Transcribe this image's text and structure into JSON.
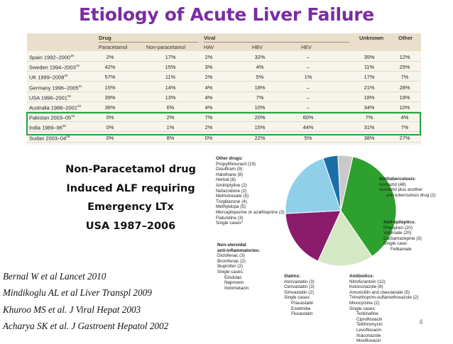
{
  "slide": {
    "title": "Etiology of Acute Liver Failure",
    "page_number": "4"
  },
  "table": {
    "groups": [
      "Drug",
      "Viral",
      "Unknown",
      "Other"
    ],
    "subheaders": [
      "Paracetamol",
      "Non-paracetamol",
      "HAV",
      "HBV",
      "HEV"
    ],
    "rows": [
      {
        "region": "Spain 1992–2000",
        "ref": "18",
        "values": [
          "2%",
          "17%",
          "2%",
          "32%",
          "–",
          "35%",
          "12%"
        ]
      },
      {
        "region": "Sweden 1994–2003",
        "ref": "19",
        "values": [
          "42%",
          "15%",
          "3%",
          "4%",
          "–",
          "11%",
          "25%"
        ]
      },
      {
        "region": "UK 1999–2008",
        "ref": "20",
        "values": [
          "57%",
          "11%",
          "2%",
          "5%",
          "1%",
          "17%",
          "7%"
        ]
      },
      {
        "region": "Germany 1996–2005",
        "ref": "21",
        "values": [
          "15%",
          "14%",
          "4%",
          "18%",
          "–",
          "21%",
          "28%"
        ]
      },
      {
        "region": "USA 1998–2001",
        "ref": "22",
        "values": [
          "39%",
          "13%",
          "4%",
          "7%",
          "–",
          "18%",
          "19%"
        ]
      },
      {
        "region": "Australia 1988–2001",
        "ref": "23",
        "values": [
          "36%",
          "6%",
          "4%",
          "10%",
          "–",
          "34%",
          "10%"
        ]
      },
      {
        "region": "Pakistan 2003–05",
        "ref": "24",
        "values": [
          "0%",
          "2%",
          "7%",
          "20%",
          "60%",
          "7%",
          "4%"
        ]
      },
      {
        "region": "India 1989–96",
        "ref": "25",
        "values": [
          "0%",
          "1%",
          "2%",
          "15%",
          "44%",
          "31%",
          "7%"
        ]
      },
      {
        "region": "Sudan 2003–04",
        "ref": "26",
        "values": [
          "0%",
          "8%",
          "0%",
          "22%",
          "5%",
          "38%",
          "27%"
        ]
      }
    ]
  },
  "ltx_text": [
    "Non-Paracetamol drug",
    "Induced  ALF  requiring",
    "Emergency  LTx",
    "USA  1987–2006"
  ],
  "references": [
    "Bernal W et al Lancet 2010",
    "Mindikoglu AL et al Liver Transpl 2009",
    "Khuroo MS et al. J Viral Hepat 2003",
    "Acharya SK et al. J Gastroent Hepatol 2002"
  ],
  "chart_data": {
    "type": "pie",
    "title": "",
    "slices": [
      {
        "name": "Other drugs",
        "value": 34,
        "color": "#2ea02e"
      },
      {
        "name": "Antituberculosis",
        "value": 15,
        "color": "#d3e9c4"
      },
      {
        "name": "Anti-epileptics",
        "value": 16,
        "color": "#8a1c6b"
      },
      {
        "name": "Antibiotics",
        "value": 19,
        "color": "#8fcfe8"
      },
      {
        "name": "Statins",
        "value": 4,
        "color": "#1b6fa8"
      },
      {
        "name": "Non-steroidal anti-inflammatories",
        "value": 4,
        "color": "#c9c9c9"
      }
    ],
    "labels": {
      "other_drugs": {
        "title": "Other drugs:",
        "items": [
          "Propylthiouracil (19)",
          "Disulfiram (9)",
          "Halothane (8)",
          "Herbal (6)",
          "Amitriptyline (2)",
          "Nefazodone (2)",
          "Methotrexate (5)",
          "Troglitazone (4)",
          "Methyldopa (5)",
          "Mercaptopurine or azathioprine (3)",
          "Flaluridine (3)",
          "Single cases*"
        ]
      },
      "antituberculosis": {
        "title": "Antituberculosis:",
        "items": [
          "Isoniazid (48)",
          "Isoniazid plus another",
          "anti-tuberculosis drug (2)"
        ]
      },
      "anti_epileptics": {
        "title": "Anti-epileptics:",
        "items": [
          "Phenytoin (20)",
          "Valproate (20)",
          "Carbamazepine (3)",
          "Single case:",
          "Felbamate"
        ]
      },
      "nsaids": {
        "title": "Non-steroidal",
        "title2": "anti-inflammatories:",
        "items": [
          "Diclofenac (3)",
          "Bromfenac (2)",
          "Ibuprofen (2)",
          "Single cases:",
          "Etodolac",
          "Naproxen",
          "Indometacin"
        ]
      },
      "statins": {
        "title": "Statins:",
        "items": [
          "Atorvastatin (3)",
          "Cerivastatin (3)",
          "Simvastatin (2)",
          "Single cases:",
          "Pravastatin",
          "Ezetimibe",
          "Fluvastatin"
        ]
      },
      "antibiotics": {
        "title": "Antibiotics:",
        "items": [
          "Nitrofurantoin (12)",
          "Ketoconazole (8)",
          "Amoxicillin and clavulanate (5)",
          "Trimethoprim-sulfamethoxazole (2)",
          "Minocycline (2)",
          "Single cases:",
          "Terbinafine",
          "Ciprofloxacin",
          "Telithromycin",
          "Levofloxacin",
          "Itraconazole",
          "Moxifloxacin"
        ]
      }
    }
  }
}
